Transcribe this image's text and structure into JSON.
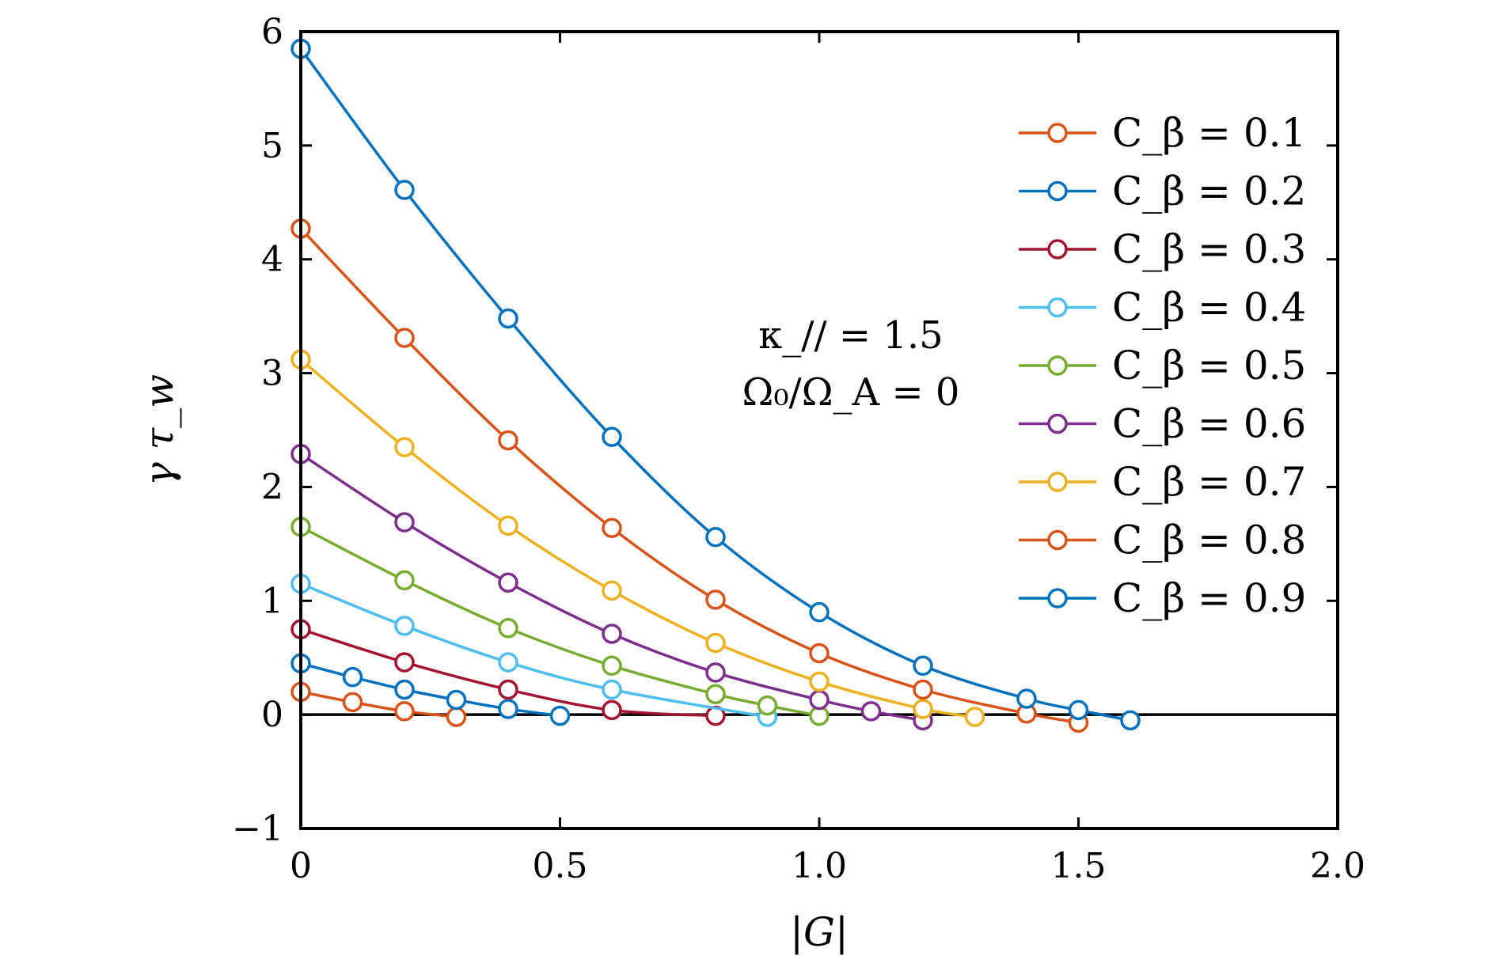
{
  "chart_data": {
    "type": "line",
    "xlabel": "|G|",
    "ylabel": "γ τ_w",
    "xlim": [
      0,
      2.0
    ],
    "ylim": [
      -1,
      6
    ],
    "xticks": [
      {
        "value": 0,
        "label": "0"
      },
      {
        "value": 0.5,
        "label": "0.5"
      },
      {
        "value": 1.0,
        "label": "1.0"
      },
      {
        "value": 1.5,
        "label": "1.5"
      },
      {
        "value": 2.0,
        "label": "2.0"
      }
    ],
    "yticks": [
      {
        "value": -1,
        "label": "−1"
      },
      {
        "value": 0,
        "label": "0"
      },
      {
        "value": 1,
        "label": "1"
      },
      {
        "value": 2,
        "label": "2"
      },
      {
        "value": 3,
        "label": "3"
      },
      {
        "value": 4,
        "label": "4"
      },
      {
        "value": 5,
        "label": "5"
      },
      {
        "value": 6,
        "label": "6"
      }
    ],
    "annotations": [
      "κ_// = 1.5",
      "Ω₀/Ω_A = 0"
    ],
    "legend_position": "top-right",
    "series": [
      {
        "name": "C_β = 0.1",
        "color": "#d95319",
        "x": [
          0,
          0.1,
          0.2,
          0.3
        ],
        "y": [
          0.2,
          0.11,
          0.03,
          -0.02
        ]
      },
      {
        "name": "C_β = 0.2",
        "color": "#0072bd",
        "x": [
          0,
          0.1,
          0.2,
          0.3,
          0.4,
          0.5
        ],
        "y": [
          0.45,
          0.33,
          0.22,
          0.13,
          0.05,
          -0.01
        ]
      },
      {
        "name": "C_β = 0.3",
        "color": "#a2142f",
        "x": [
          0,
          0.2,
          0.4,
          0.6,
          0.8
        ],
        "y": [
          0.75,
          0.46,
          0.22,
          0.04,
          -0.01
        ]
      },
      {
        "name": "C_β = 0.4",
        "color": "#4dbeee",
        "x": [
          0,
          0.2,
          0.4,
          0.6,
          0.9
        ],
        "y": [
          1.15,
          0.78,
          0.46,
          0.22,
          -0.02
        ]
      },
      {
        "name": "C_β = 0.5",
        "color": "#77ac30",
        "x": [
          0,
          0.2,
          0.4,
          0.6,
          0.8,
          0.9,
          1.0
        ],
        "y": [
          1.65,
          1.18,
          0.76,
          0.43,
          0.18,
          0.08,
          -0.01
        ]
      },
      {
        "name": "C_β = 0.6",
        "color": "#7e2f8e",
        "x": [
          0,
          0.2,
          0.4,
          0.6,
          0.8,
          1.0,
          1.1,
          1.2
        ],
        "y": [
          2.29,
          1.69,
          1.16,
          0.71,
          0.37,
          0.13,
          0.03,
          -0.05
        ]
      },
      {
        "name": "C_β = 0.7",
        "color": "#edb120",
        "x": [
          0,
          0.2,
          0.4,
          0.6,
          0.8,
          1.0,
          1.2,
          1.3
        ],
        "y": [
          3.12,
          2.35,
          1.66,
          1.09,
          0.63,
          0.29,
          0.05,
          -0.02
        ]
      },
      {
        "name": "C_β = 0.8",
        "color": "#d95319",
        "x": [
          0,
          0.2,
          0.4,
          0.6,
          0.8,
          1.0,
          1.2,
          1.4,
          1.5
        ],
        "y": [
          4.27,
          3.31,
          2.41,
          1.64,
          1.01,
          0.54,
          0.22,
          0.01,
          -0.07
        ]
      },
      {
        "name": "C_β = 0.9",
        "color": "#0072bd",
        "x": [
          0,
          0.2,
          0.4,
          0.6,
          0.8,
          1.0,
          1.2,
          1.4,
          1.5,
          1.6
        ],
        "y": [
          5.85,
          4.61,
          3.48,
          2.44,
          1.56,
          0.9,
          0.43,
          0.14,
          0.04,
          -0.05
        ]
      }
    ]
  }
}
